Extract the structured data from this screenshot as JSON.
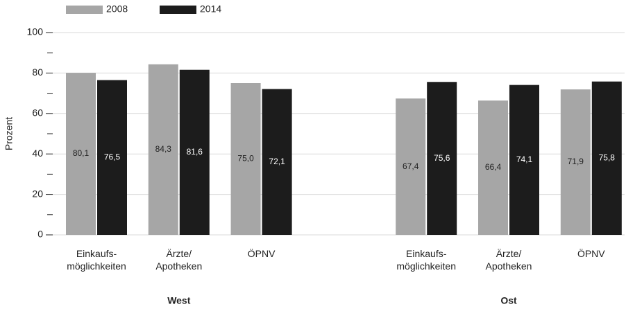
{
  "chart_data": {
    "type": "grouped_bar",
    "ylabel": "Prozent",
    "groups": [
      "West",
      "Ost"
    ],
    "categories": [
      "Einkaufs-\nmöglichkeiten",
      "Ärzte/\nApotheken",
      "ÖPNV",
      "Einkaufs-\nmöglichkeiten",
      "Ärzte/\nApotheken",
      "ÖPNV"
    ],
    "series": [
      {
        "name": "2008",
        "color": "#a6a6a6",
        "label_color": "#222222",
        "values": [
          80.1,
          84.3,
          75.0,
          67.4,
          66.4,
          71.9
        ],
        "value_labels": [
          "80,1",
          "84,3",
          "75,0",
          "67,4",
          "66,4",
          "71,9"
        ]
      },
      {
        "name": "2014",
        "color": "#1c1c1c",
        "label_color": "#ffffff",
        "values": [
          76.5,
          81.6,
          72.1,
          75.6,
          74.1,
          75.8
        ],
        "value_labels": [
          "76,5",
          "81,6",
          "72,1",
          "75,6",
          "74,1",
          "75,8"
        ]
      }
    ],
    "ylim": [
      0,
      100
    ],
    "yticks": [
      0,
      20,
      40,
      60,
      80,
      100
    ],
    "yticks_minor": [
      10,
      30,
      50,
      70,
      90
    ],
    "grid": true
  }
}
